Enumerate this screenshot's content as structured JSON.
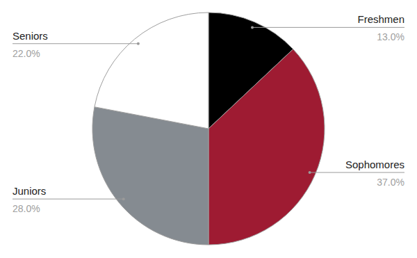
{
  "chart_data": {
    "type": "pie",
    "categories": [
      "Freshmen",
      "Sophomores",
      "Juniors",
      "Seniors"
    ],
    "values": [
      13,
      37,
      28,
      22
    ],
    "value_labels": [
      "13.0%",
      "37.0%",
      "28.0%",
      "22.0%"
    ],
    "colors": [
      "#000000",
      "#9e1b32",
      "#858b91",
      "#ffffff"
    ],
    "data_labels": true
  }
}
